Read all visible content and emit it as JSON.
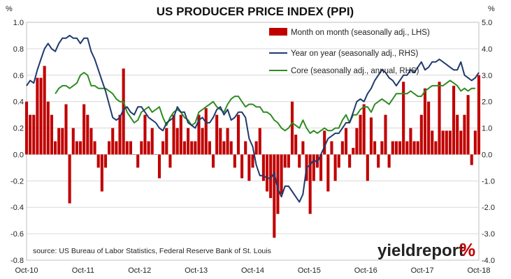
{
  "chart_data": {
    "type": "bar+line",
    "title": "US PRODUCER PRICE INDEX (PPI)",
    "left_unit": "%",
    "right_unit": "%",
    "ylim_left": [
      -0.8,
      1.0
    ],
    "ylim_right": [
      -4.0,
      5.0
    ],
    "left_ticks": [
      "1.0",
      "0.8",
      "0.6",
      "0.4",
      "0.2",
      "0.0",
      "-0.2",
      "-0.4",
      "-0.6",
      "-0.8"
    ],
    "right_ticks": [
      "5.0",
      "4.0",
      "3.0",
      "2.0",
      "1.0",
      "0.0",
      "-1.0",
      "-2.0",
      "-3.0",
      "-4.0"
    ],
    "x_tick_labels": [
      "Oct-10",
      "Oct-11",
      "Oct-12",
      "Oct-13",
      "Oct-14",
      "Oct-15",
      "Oct-16",
      "Oct-17",
      "Oct-18"
    ],
    "x_start": "Oct-10",
    "x_end": "Oct-18",
    "gridlines": true,
    "legend_position": "top-right",
    "source": "source: US Bureau of Labor Statistics, Federal Reserve Bank of St. Louis",
    "logo": "yieldreport %",
    "series": [
      {
        "name": "Month on month (seasonally adj., LHS)",
        "type": "bar",
        "axis": "left",
        "color": "#c00000",
        "values": [
          0.4,
          0.3,
          0.3,
          0.58,
          0.58,
          0.67,
          0.4,
          0.3,
          0.1,
          0.2,
          0.2,
          0.38,
          -0.37,
          0.2,
          0.1,
          0.1,
          0.38,
          0.3,
          0.2,
          0.1,
          -0.1,
          -0.28,
          -0.1,
          0.1,
          0.2,
          0.1,
          0.3,
          0.65,
          0.1,
          0.1,
          0.0,
          -0.1,
          0.1,
          0.3,
          0.1,
          0.2,
          0.0,
          -0.18,
          0.1,
          0.2,
          -0.1,
          0.3,
          0.2,
          0.3,
          0.1,
          0.2,
          0.1,
          0.1,
          0.3,
          0.2,
          0.35,
          0.1,
          -0.1,
          0.3,
          0.2,
          0.1,
          0.2,
          0.1,
          -0.1,
          0.3,
          -0.18,
          0.1,
          -0.2,
          -0.1,
          0.1,
          0.2,
          -0.2,
          -0.28,
          -0.33,
          -0.63,
          -0.45,
          -0.3,
          -0.1,
          -0.1,
          0.4,
          0.15,
          -0.1,
          0.1,
          -0.2,
          -0.45,
          -0.2,
          -0.1,
          -0.2,
          0.18,
          -0.28,
          0.1,
          -0.2,
          -0.1,
          0.1,
          0.2,
          -0.1,
          0.05,
          0.2,
          0.3,
          0.38,
          -0.2,
          0.28,
          0.1,
          -0.1,
          0.1,
          0.3,
          -0.1,
          0.1,
          0.1,
          0.1,
          0.55,
          0.1,
          0.2,
          0.1,
          0.1,
          0.3,
          0.5,
          0.4,
          0.18,
          0.1,
          0.55,
          0.18,
          0.18,
          0.18,
          0.52,
          0.3,
          0.18,
          0.3,
          0.45,
          -0.08,
          0.18,
          0.6
        ]
      },
      {
        "name": "Year on year (seasonally adj., RHS)",
        "type": "line",
        "axis": "right",
        "color": "#1f3a6e",
        "values": [
          2.6,
          2.8,
          2.7,
          3.2,
          3.6,
          4.0,
          4.2,
          4.0,
          3.9,
          4.2,
          4.4,
          4.4,
          4.5,
          4.4,
          4.4,
          4.2,
          4.4,
          4.4,
          3.9,
          3.6,
          3.2,
          2.8,
          2.4,
          1.9,
          1.4,
          1.3,
          1.4,
          1.7,
          1.8,
          1.6,
          1.5,
          1.8,
          1.8,
          1.6,
          1.4,
          1.3,
          1.2,
          1.0,
          0.9,
          1.2,
          1.3,
          1.4,
          1.8,
          1.6,
          1.6,
          1.2,
          1.1,
          1.0,
          1.3,
          1.4,
          1.2,
          1.2,
          1.4,
          1.7,
          1.8,
          1.5,
          1.7,
          1.3,
          1.4,
          1.6,
          1.6,
          1.4,
          0.6,
          0.3,
          -0.4,
          -0.8,
          -0.8,
          -0.9,
          -0.9,
          -0.7,
          -1.3,
          -1.6,
          -1.2,
          -1.2,
          -1.4,
          -1.6,
          -1.8,
          -1.5,
          -0.5,
          -0.4,
          -0.2,
          -0.3,
          0.0,
          0.3,
          0.6,
          0.7,
          0.8,
          0.8,
          1.0,
          1.2,
          1.2,
          1.6,
          2.0,
          2.1,
          2.0,
          2.3,
          2.5,
          2.8,
          3.0,
          3.2,
          3.1,
          2.9,
          2.8,
          2.6,
          2.8,
          3.0,
          3.0,
          3.2,
          3.1,
          3.3,
          3.5,
          3.2,
          3.3,
          3.5,
          3.5,
          3.6,
          3.5,
          3.4,
          3.3,
          3.2,
          3.2,
          3.5,
          3.0,
          2.9,
          2.8,
          2.9,
          3.1
        ]
      },
      {
        "name": "Core (seasonally adj., annual, RHS)",
        "type": "line",
        "axis": "right",
        "color": "#2e8b22",
        "values": [
          null,
          null,
          null,
          null,
          null,
          null,
          null,
          null,
          2.3,
          2.5,
          2.6,
          2.6,
          2.5,
          2.6,
          2.7,
          3.0,
          3.1,
          3.0,
          2.6,
          2.6,
          2.5,
          2.5,
          2.5,
          2.4,
          2.3,
          2.1,
          2.0,
          2.0,
          1.6,
          1.4,
          1.2,
          1.3,
          1.6,
          1.7,
          1.8,
          1.6,
          1.7,
          1.8,
          1.4,
          1.1,
          1.4,
          1.6,
          1.7,
          1.6,
          1.4,
          1.3,
          1.1,
          1.2,
          1.6,
          1.7,
          1.8,
          1.9,
          2.0,
          1.8,
          1.7,
          1.6,
          1.9,
          2.1,
          2.2,
          2.2,
          2.0,
          1.8,
          1.9,
          1.9,
          1.8,
          1.8,
          1.6,
          1.6,
          1.5,
          1.3,
          1.2,
          1.0,
          0.9,
          1.0,
          1.2,
          1.1,
          1.0,
          1.3,
          1.0,
          0.8,
          0.9,
          0.8,
          0.9,
          1.0,
          0.9,
          0.9,
          1.0,
          1.0,
          1.3,
          1.5,
          1.2,
          1.5,
          1.5,
          1.7,
          1.8,
          1.8,
          1.6,
          1.9,
          2.0,
          2.1,
          2.0,
          1.9,
          2.1,
          2.3,
          2.3,
          2.3,
          2.3,
          2.4,
          2.3,
          2.2,
          2.2,
          2.4,
          2.5,
          2.6,
          2.6,
          2.6,
          2.6,
          2.7,
          2.8,
          2.7,
          2.6,
          2.4,
          2.5,
          2.4,
          2.5,
          2.5
        ]
      }
    ]
  }
}
